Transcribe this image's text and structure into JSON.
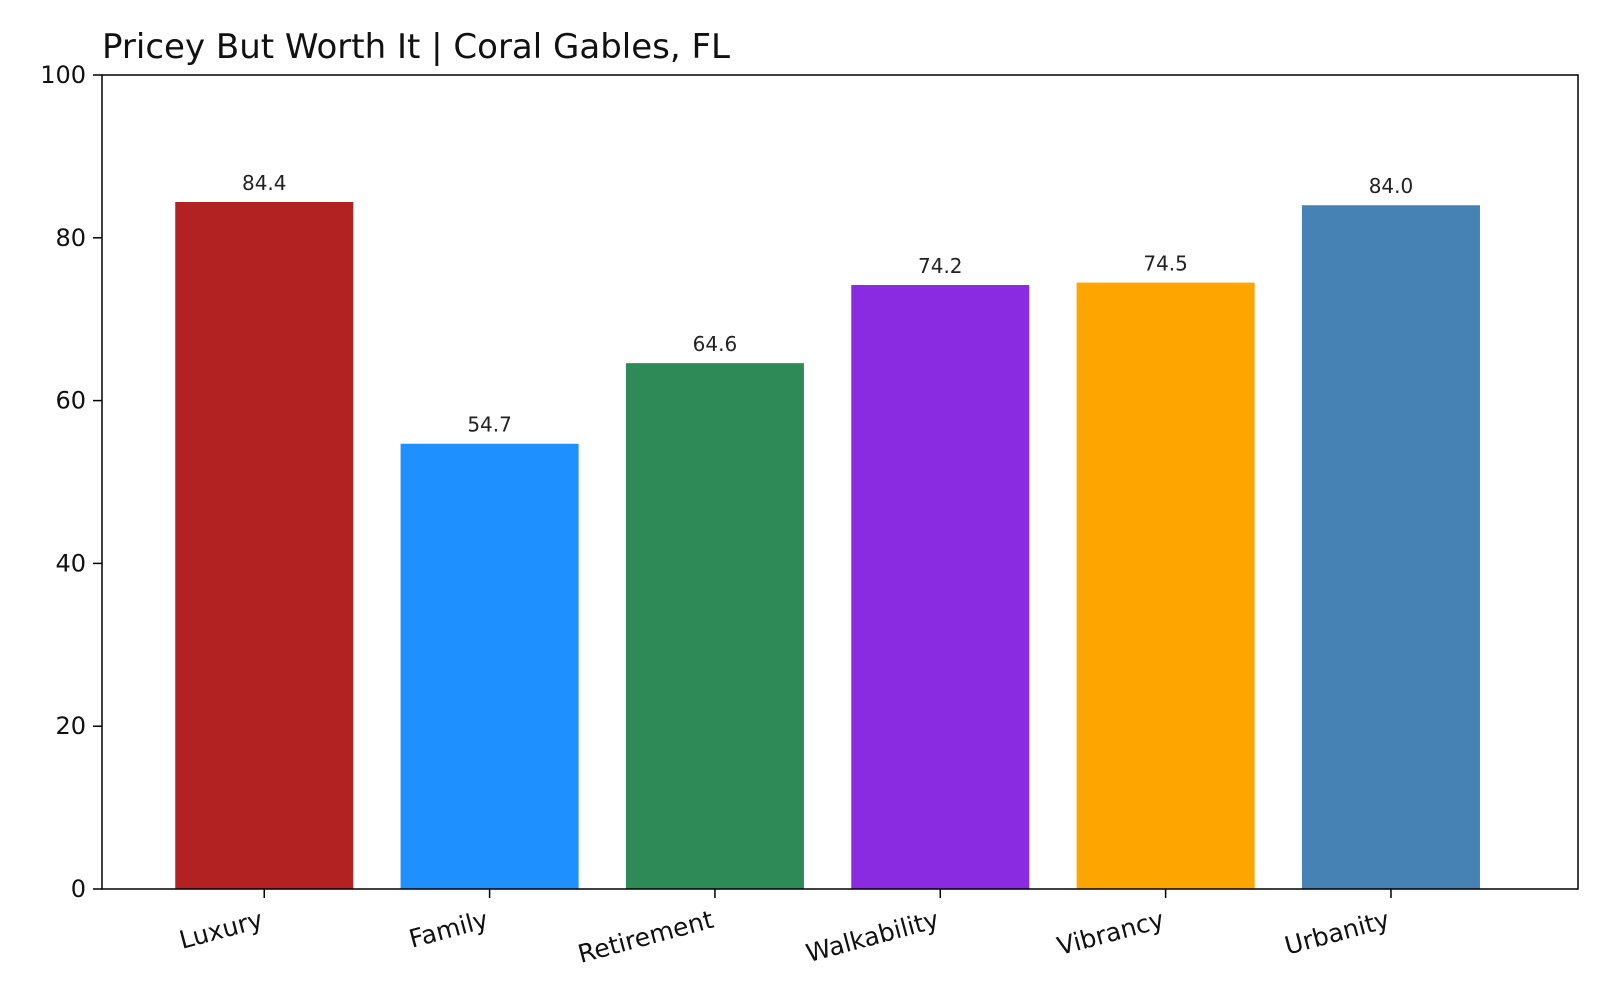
{
  "chart_data": {
    "type": "bar",
    "title": "Pricey But Worth It | Coral Gables, FL",
    "xlabel": "",
    "ylabel": "",
    "categories": [
      "Luxury",
      "Family",
      "Retirement",
      "Walkability",
      "Vibrancy",
      "Urbanity"
    ],
    "values": [
      84.4,
      54.7,
      64.6,
      74.2,
      74.5,
      84.0
    ],
    "data_labels": [
      "84.4",
      "54.7",
      "64.6",
      "74.2",
      "74.5",
      "84.0"
    ],
    "colors": [
      "#B22222",
      "#1E90FF",
      "#2E8B57",
      "#8A2BE2",
      "#FFA500",
      "#4682B4"
    ],
    "ylim": [
      0,
      100
    ],
    "yticks": [
      0,
      20,
      40,
      60,
      80,
      100
    ],
    "ytick_labels": [
      "0",
      "20",
      "40",
      "60",
      "80",
      "100"
    ],
    "grid": false,
    "legend": "none"
  }
}
